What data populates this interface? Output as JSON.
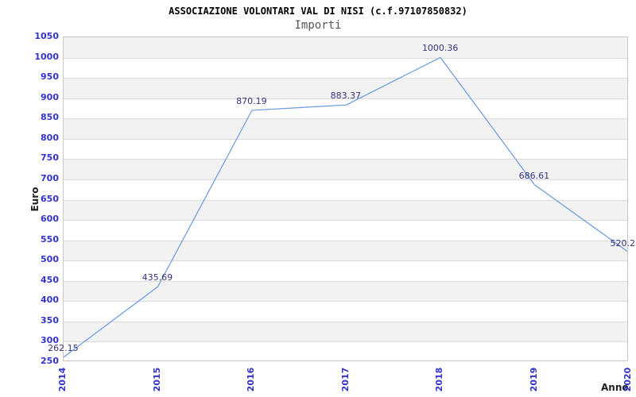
{
  "chart": {
    "title": "ASSOCIAZIONE VOLONTARI VAL DI NISI (c.f.97107850832)",
    "subtitle": "Importi",
    "y_axis_title": "Euro",
    "x_axis_title": "Anno"
  },
  "chart_data": {
    "type": "line",
    "title": "ASSOCIAZIONE VOLONTARI VAL DI NISI (c.f.97107850832)",
    "subtitle": "Importi",
    "xlabel": "Anno",
    "ylabel": "Euro",
    "categories": [
      "2014",
      "2015",
      "2016",
      "2017",
      "2018",
      "2019",
      "2020"
    ],
    "values": [
      262.15,
      435.69,
      870.19,
      883.37,
      1000.36,
      686.61,
      520.2
    ],
    "point_labels": [
      "262.15",
      "435.69",
      "870.19",
      "883.37",
      "1000.36",
      "686.61",
      "520.2"
    ],
    "ylim": [
      250,
      1050
    ],
    "y_tick_step": 50,
    "grid": true,
    "alternating_bands": true,
    "legend_position": "none",
    "colors": {
      "line": "#6699dd",
      "tick_label": "#3232cd",
      "data_label": "#333380",
      "band_fill": "#f2f2f2",
      "gridline": "#dcdcdc",
      "plot_border": "#c8c8c8",
      "title": "#000000",
      "subtitle": "#555555",
      "axis_title": "#222222"
    }
  }
}
